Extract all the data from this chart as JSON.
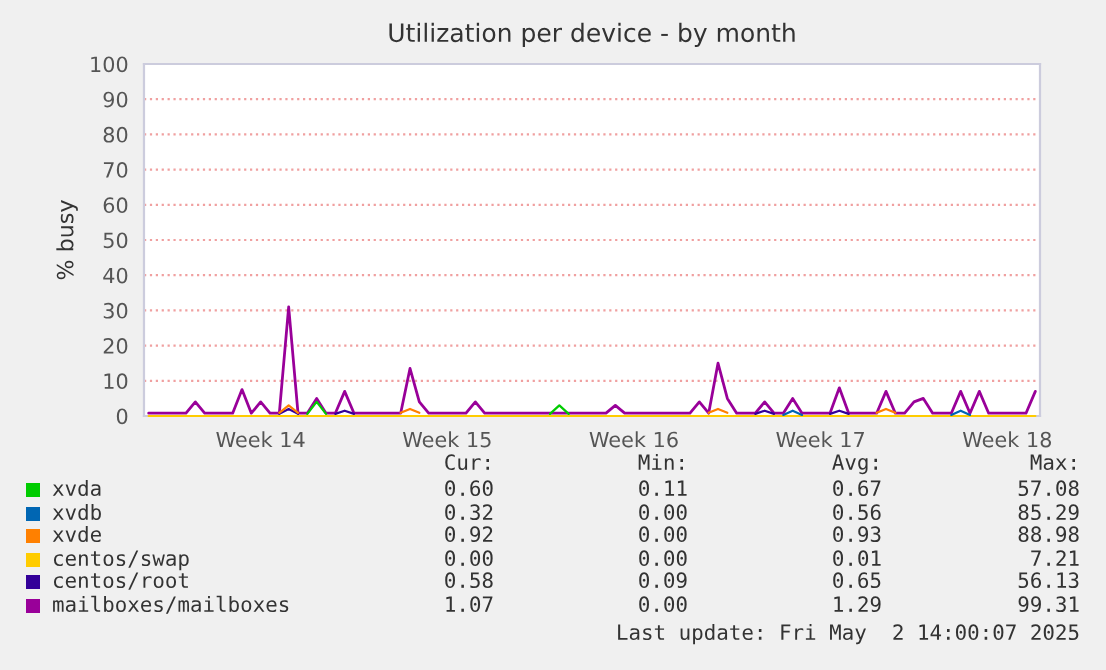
{
  "chart_data": {
    "type": "line",
    "title": "Utilization per device - by month",
    "ylabel": "% busy",
    "categories": [
      null,
      null,
      null,
      null,
      null,
      null,
      null,
      null,
      null,
      null,
      null,
      null,
      "Week 14",
      null,
      null,
      null,
      null,
      null,
      null,
      null,
      null,
      null,
      null,
      null,
      null,
      null,
      null,
      null,
      null,
      null,
      null,
      null,
      "Week 15",
      null,
      null,
      null,
      null,
      null,
      null,
      null,
      null,
      null,
      null,
      null,
      null,
      null,
      null,
      null,
      null,
      null,
      null,
      null,
      "Week 16",
      null,
      null,
      null,
      null,
      null,
      null,
      null,
      null,
      null,
      null,
      null,
      null,
      null,
      null,
      null,
      null,
      null,
      null,
      null,
      "Week 17",
      null,
      null,
      null,
      null,
      null,
      null,
      null,
      null,
      null,
      null,
      null,
      null,
      null,
      null,
      null,
      null,
      null,
      null,
      null,
      "Week 18",
      null,
      null,
      null
    ],
    "ylim": [
      0,
      100
    ],
    "yticks": [
      0,
      10,
      20,
      30,
      40,
      50,
      60,
      70,
      80,
      90,
      100
    ],
    "grid": "y",
    "legend": "bottom",
    "series": [
      {
        "name": "xvda",
        "color": "#00cc00",
        "values": [
          null,
          null,
          null,
          null,
          null,
          null,
          null,
          null,
          null,
          null,
          null,
          null,
          null,
          null,
          null,
          null,
          null,
          0.6,
          4,
          0.6,
          null,
          null,
          null,
          null,
          null,
          null,
          null,
          null,
          null,
          null,
          null,
          null,
          null,
          null,
          null,
          null,
          null,
          null,
          null,
          null,
          null,
          null,
          null,
          0.6,
          3,
          0.6,
          null,
          null,
          null,
          null,
          null,
          null,
          null,
          null,
          null,
          null,
          null,
          null,
          null,
          null,
          null,
          null,
          null,
          null,
          null,
          null,
          null,
          null,
          null,
          null,
          null,
          null,
          null,
          null,
          null,
          null,
          null,
          null,
          null,
          null,
          null,
          null,
          null,
          null,
          null,
          null,
          null,
          null,
          null,
          null,
          null,
          null,
          null,
          null,
          null,
          null
        ]
      },
      {
        "name": "xvdb",
        "color": "#0066b3",
        "values": [
          null,
          null,
          null,
          null,
          null,
          null,
          null,
          null,
          null,
          null,
          null,
          null,
          null,
          null,
          null,
          null,
          null,
          null,
          null,
          null,
          null,
          null,
          null,
          null,
          null,
          null,
          null,
          null,
          null,
          null,
          null,
          null,
          null,
          null,
          null,
          null,
          null,
          null,
          null,
          null,
          null,
          null,
          null,
          null,
          null,
          null,
          null,
          null,
          null,
          null,
          null,
          null,
          null,
          null,
          null,
          null,
          null,
          null,
          null,
          null,
          null,
          null,
          null,
          null,
          null,
          null,
          null,
          null,
          0.3,
          1.5,
          0.3,
          null,
          null,
          null,
          null,
          null,
          null,
          null,
          null,
          null,
          null,
          null,
          null,
          null,
          null,
          null,
          0.3,
          1.5,
          0.3,
          null,
          null,
          null,
          null,
          null,
          null,
          null
        ]
      },
      {
        "name": "xvde",
        "color": "#ff8000",
        "values": [
          null,
          null,
          null,
          null,
          null,
          null,
          null,
          null,
          null,
          null,
          null,
          null,
          null,
          null,
          0.9,
          3,
          0.9,
          null,
          null,
          null,
          null,
          null,
          null,
          null,
          null,
          null,
          null,
          0.9,
          2,
          0.9,
          null,
          null,
          null,
          null,
          null,
          null,
          null,
          null,
          null,
          null,
          null,
          null,
          null,
          null,
          null,
          null,
          null,
          null,
          null,
          null,
          null,
          null,
          null,
          null,
          null,
          null,
          null,
          null,
          null,
          null,
          0.9,
          2,
          0.9,
          null,
          null,
          null,
          null,
          null,
          null,
          null,
          null,
          null,
          null,
          null,
          null,
          null,
          null,
          null,
          0.9,
          2,
          0.9,
          null,
          null,
          null,
          null,
          null,
          null,
          null,
          null,
          null,
          null,
          null,
          null,
          null,
          null,
          null
        ]
      },
      {
        "name": "centos/swap",
        "color": "#ffcc00",
        "values": [
          0,
          0,
          0,
          0,
          0,
          0,
          0,
          0,
          0,
          0,
          0,
          0,
          0,
          0,
          0,
          0,
          0,
          0,
          0,
          0,
          0,
          0,
          0,
          0,
          0,
          0,
          0,
          0,
          0,
          0,
          0,
          0,
          0,
          0,
          0,
          0,
          0,
          0,
          0,
          0,
          0,
          0,
          0,
          0,
          0,
          0,
          0,
          0,
          0,
          0,
          0,
          0,
          0,
          0,
          0,
          0,
          0,
          0,
          0,
          0,
          0,
          0,
          0,
          0,
          0,
          0,
          0,
          0,
          0,
          0,
          0,
          0,
          0,
          0,
          0,
          0,
          0,
          0,
          0,
          0,
          0,
          0,
          0,
          0,
          0,
          0,
          0,
          0,
          0,
          0,
          0,
          0,
          0,
          0,
          0,
          0
        ]
      },
      {
        "name": "centos/root",
        "color": "#330099",
        "values": [
          null,
          null,
          null,
          null,
          null,
          null,
          null,
          null,
          null,
          null,
          null,
          null,
          null,
          null,
          0.6,
          2,
          0.6,
          null,
          null,
          null,
          0.6,
          1.5,
          0.6,
          null,
          null,
          null,
          null,
          null,
          null,
          null,
          null,
          null,
          null,
          null,
          null,
          null,
          null,
          null,
          null,
          null,
          null,
          null,
          null,
          null,
          null,
          null,
          null,
          null,
          null,
          null,
          null,
          null,
          null,
          null,
          null,
          null,
          null,
          null,
          null,
          null,
          null,
          null,
          null,
          null,
          null,
          0.6,
          1.5,
          0.6,
          null,
          null,
          null,
          null,
          null,
          0.6,
          1.5,
          0.6,
          null,
          null,
          null,
          null,
          null,
          null,
          null,
          null,
          null,
          null,
          null,
          null,
          null,
          null,
          null,
          null,
          null,
          null,
          null,
          null
        ]
      },
      {
        "name": "mailboxes/mailboxes",
        "color": "#990099",
        "values": [
          0.8,
          0.8,
          0.8,
          0.8,
          0.8,
          4,
          0.8,
          0.8,
          0.8,
          0.8,
          7.5,
          0.8,
          4,
          0.8,
          0.8,
          31,
          0.8,
          0.8,
          5,
          0.8,
          0.8,
          7,
          0.8,
          0.8,
          0.8,
          0.8,
          0.8,
          0.8,
          13.5,
          4,
          0.8,
          0.8,
          0.8,
          0.8,
          0.8,
          4,
          0.8,
          0.8,
          0.8,
          0.8,
          0.8,
          0.8,
          0.8,
          0.8,
          0.8,
          0.8,
          0.8,
          0.8,
          0.8,
          0.8,
          3,
          0.8,
          0.8,
          0.8,
          0.8,
          0.8,
          0.8,
          0.8,
          0.8,
          4,
          0.8,
          15,
          5,
          0.8,
          0.8,
          0.8,
          4,
          0.8,
          0.8,
          5,
          0.8,
          0.8,
          0.8,
          0.8,
          8,
          0.8,
          0.8,
          0.8,
          0.8,
          7,
          0.8,
          0.8,
          4,
          5,
          0.8,
          0.8,
          0.8,
          7,
          0.8,
          7,
          0.8,
          0.8,
          0.8,
          0.8,
          0.8,
          7
        ]
      }
    ],
    "annotations": [
      "Cur:",
      "Min:",
      "Avg:",
      "Max:",
      "0.60",
      "0.11",
      "0.67",
      "57.08",
      "0.32",
      "0.00",
      "0.56",
      "85.29",
      "0.92",
      "0.00",
      "0.93",
      "88.98",
      "0.00",
      "0.00",
      "0.01",
      "7.21",
      "0.58",
      "0.09",
      "0.65",
      "56.13",
      "1.07",
      "0.00",
      "1.29",
      "99.31",
      "Last update: Fri May  2 14:00:07 2025"
    ]
  }
}
